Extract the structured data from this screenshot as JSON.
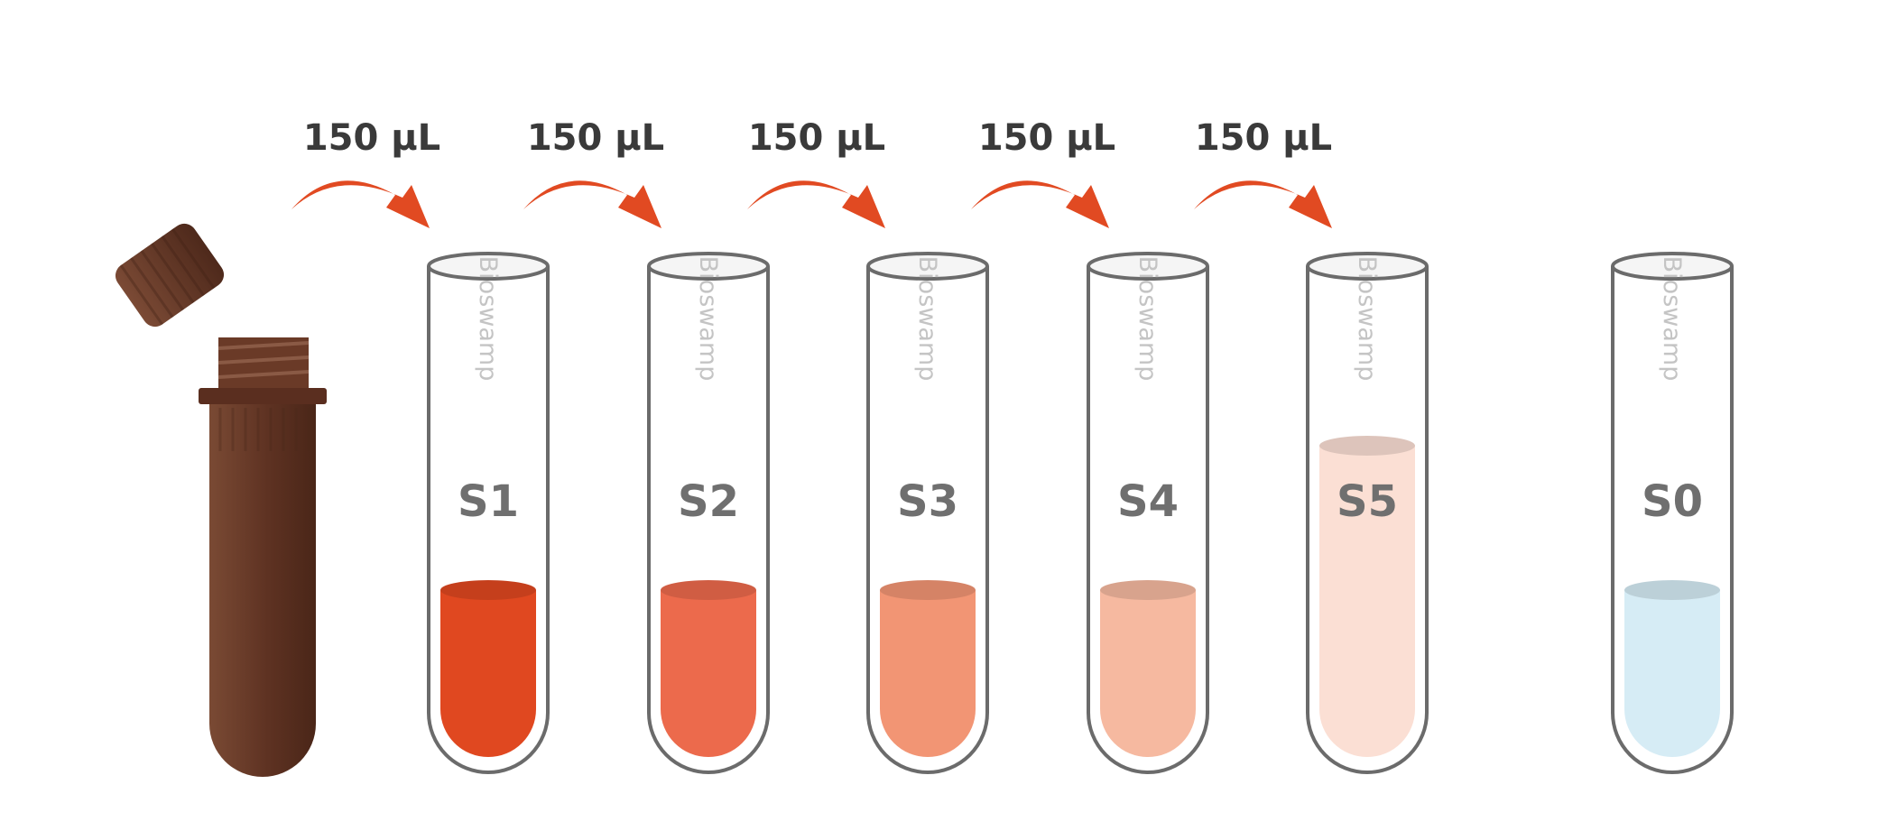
{
  "transfers": [
    {
      "volume": "150 μL"
    },
    {
      "volume": "150 μL"
    },
    {
      "volume": "150 μL"
    },
    {
      "volume": "150 μL"
    },
    {
      "volume": "150 μL"
    }
  ],
  "stock_tube": {
    "icon": "stock-vial-icon",
    "cap_icon": "vial-cap-icon",
    "color": "#6b3d2a"
  },
  "tubes": [
    {
      "label": "S1",
      "brand": "Bioswamp",
      "liquid_color": "#e04820",
      "fill_level": 0.35
    },
    {
      "label": "S2",
      "brand": "Bioswamp",
      "liquid_color": "#ec6a4c",
      "fill_level": 0.35
    },
    {
      "label": "S3",
      "brand": "Bioswamp",
      "liquid_color": "#f29574",
      "fill_level": 0.35
    },
    {
      "label": "S4",
      "brand": "Bioswamp",
      "liquid_color": "#f6b9a0",
      "fill_level": 0.35
    },
    {
      "label": "S5",
      "brand": "Bioswamp",
      "liquid_color": "#fbdfd4",
      "fill_level": 0.64
    },
    {
      "label": "S0",
      "brand": "Bioswamp",
      "liquid_color": "#d6ecf5",
      "fill_level": 0.35
    }
  ],
  "colors": {
    "arrow": "#e14a22",
    "tube_outline": "#6b6b6b",
    "tube_label": "#6f6f6f",
    "transfer_text": "#3a3a3a"
  }
}
